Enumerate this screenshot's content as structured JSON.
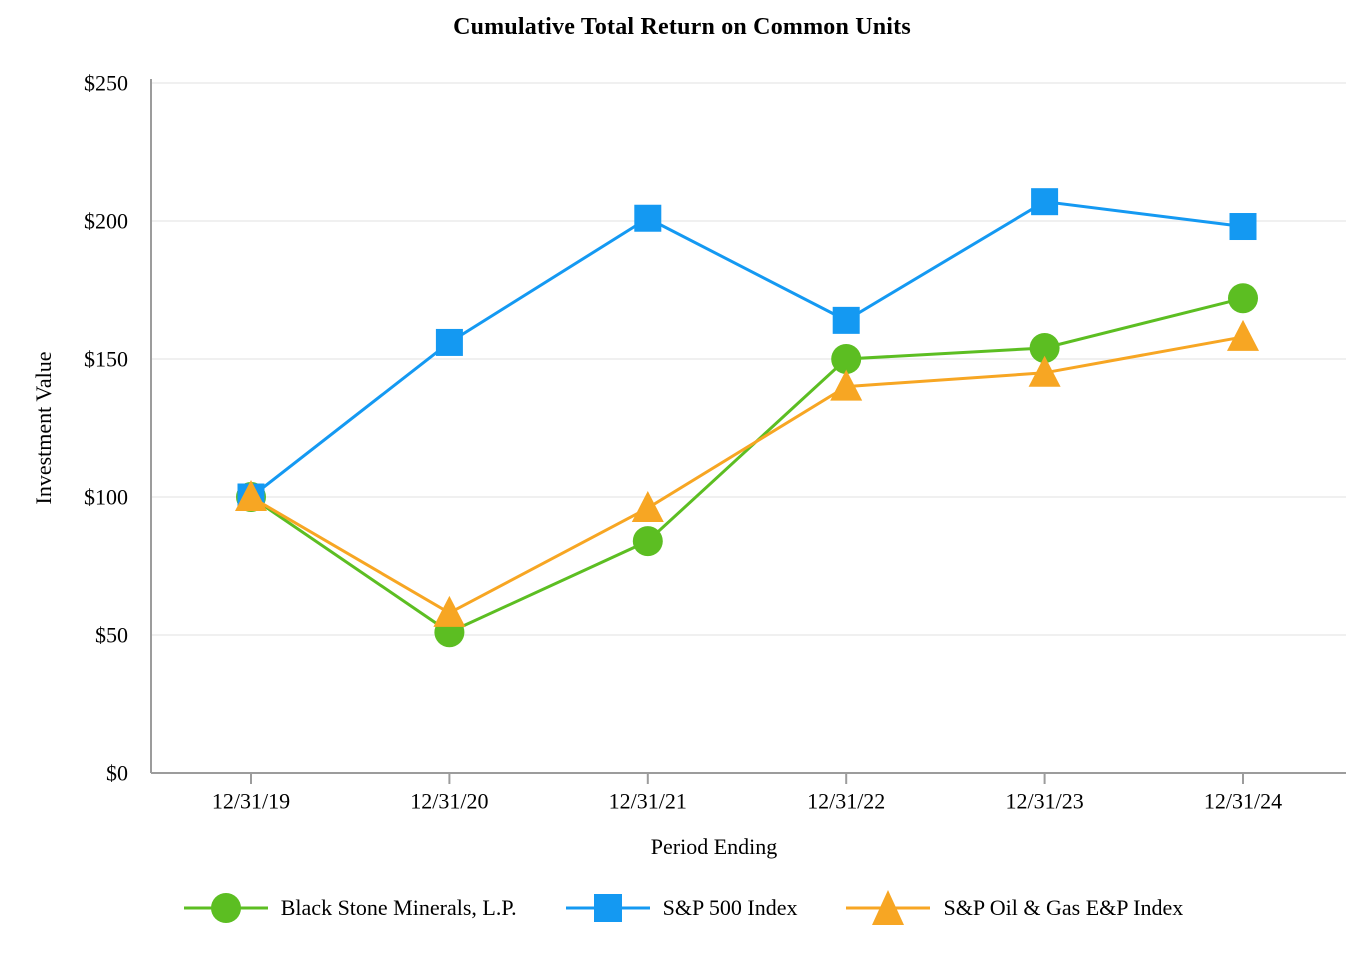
{
  "chart_data": {
    "type": "line",
    "title": "Cumulative Total Return on Common Units",
    "xlabel": "Period Ending",
    "ylabel": "Investment Value",
    "categories": [
      "12/31/19",
      "12/31/20",
      "12/31/21",
      "12/31/22",
      "12/31/23",
      "12/31/24"
    ],
    "series": [
      {
        "name": "Black Stone Minerals, L.P.",
        "marker": "circle",
        "color": "#5CBE22",
        "values": [
          100,
          51,
          84,
          150,
          154,
          172
        ]
      },
      {
        "name": "S&P 500 Index",
        "marker": "square",
        "color": "#1499F2",
        "values": [
          100,
          156,
          201,
          164,
          207,
          198
        ]
      },
      {
        "name": "S&P Oil & Gas E&P Index",
        "marker": "triangle",
        "color": "#F7A623",
        "values": [
          100,
          58,
          96,
          140,
          145,
          158
        ]
      }
    ],
    "ylim": [
      0,
      250
    ],
    "ytick_values": [
      0,
      50,
      100,
      150,
      200,
      250
    ],
    "ytick_labels": [
      "$0",
      "$50",
      "$100",
      "$150",
      "$200",
      "$250"
    ],
    "grid": "horizontal",
    "legend_position": "bottom",
    "colors": {
      "grid": "#EBEBEB",
      "axis": "#9C9C9C",
      "text": "#000000"
    }
  }
}
